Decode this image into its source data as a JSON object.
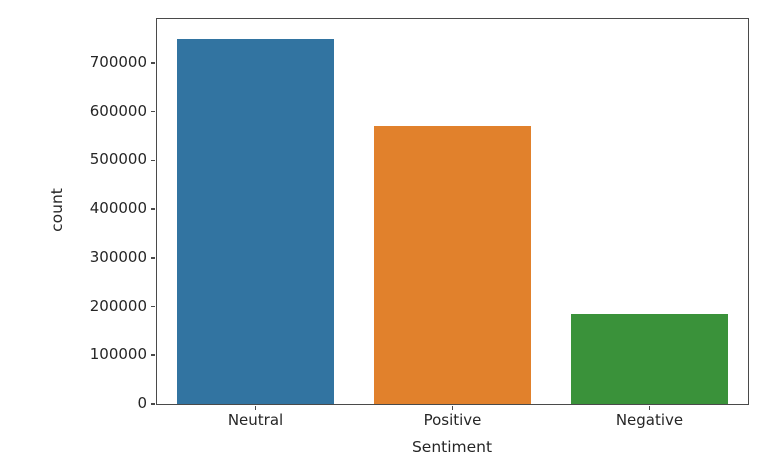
{
  "chart_data": {
    "type": "bar",
    "categories": [
      "Neutral",
      "Positive",
      "Negative"
    ],
    "values": [
      750000,
      570000,
      185000
    ],
    "bar_colors": [
      "#3274a1",
      "#e1812c",
      "#3a923a"
    ],
    "title": "",
    "xlabel": "Sentiment",
    "ylabel": "count",
    "ylim": [
      0,
      790000
    ],
    "yticks": [
      0,
      100000,
      200000,
      300000,
      400000,
      500000,
      600000,
      700000
    ],
    "bar_width_ratio": 0.8,
    "grid": false,
    "legend_position": "none",
    "axis_color": "#4a4a4a",
    "text_color": "#262626",
    "background_color": "#ffffff"
  }
}
